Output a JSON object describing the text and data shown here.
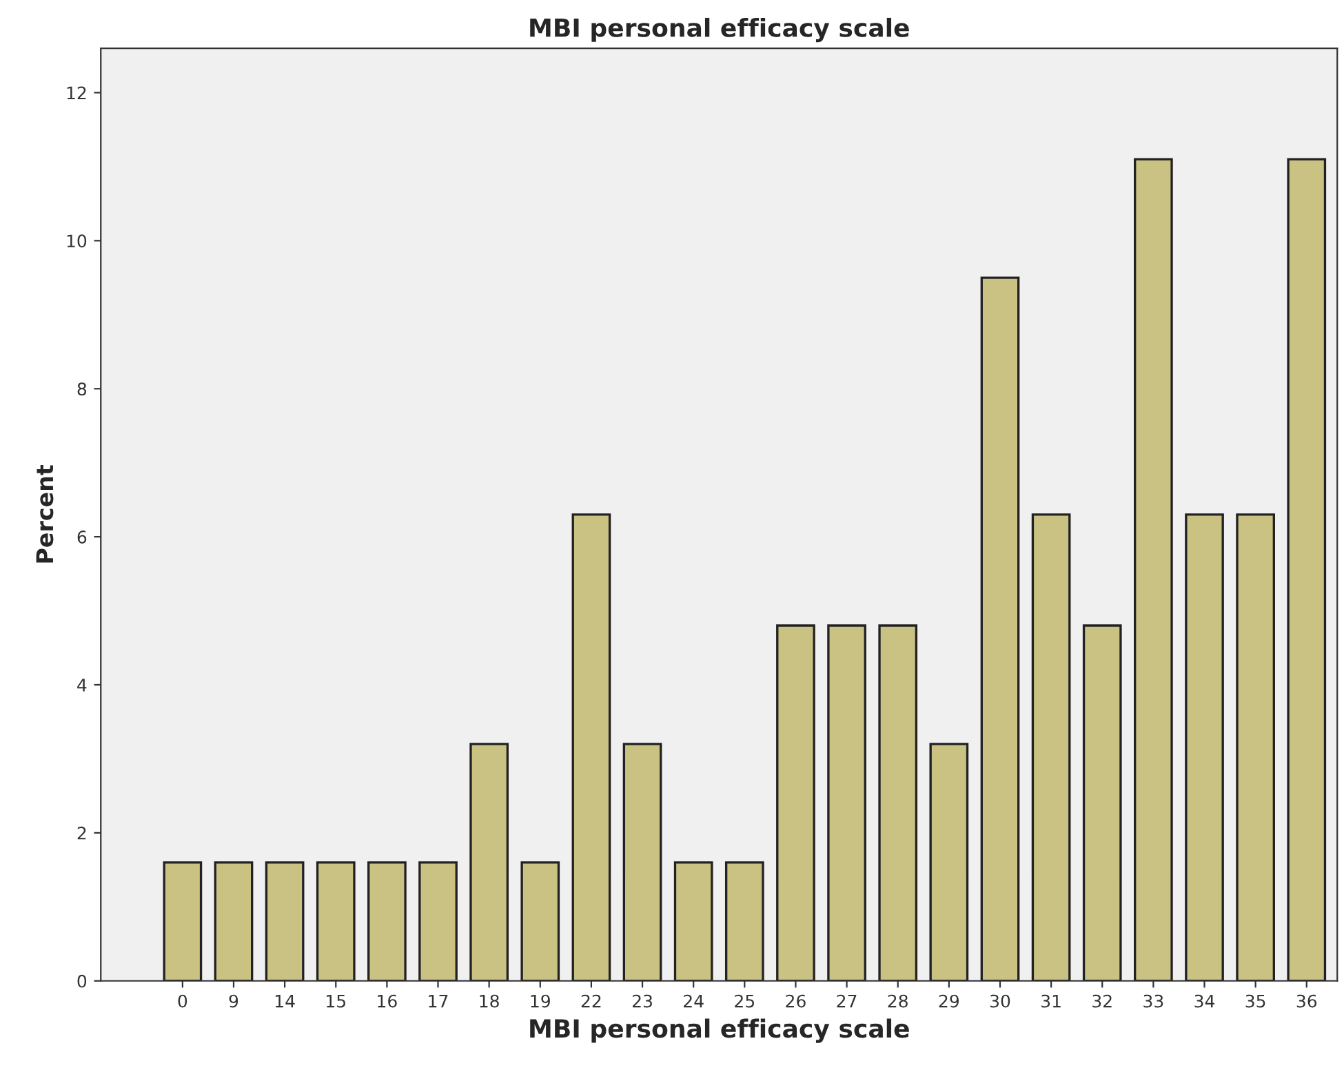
{
  "chart_data": {
    "type": "bar",
    "title": "MBI personal efficacy scale",
    "xlabel": "MBI personal efficacy scale",
    "ylabel": "Percent",
    "categories": [
      "0",
      "9",
      "14",
      "15",
      "16",
      "17",
      "18",
      "19",
      "22",
      "23",
      "24",
      "25",
      "26",
      "27",
      "28",
      "29",
      "30",
      "31",
      "32",
      "33",
      "34",
      "35",
      "36"
    ],
    "values": [
      1.6,
      1.6,
      1.6,
      1.6,
      1.6,
      1.6,
      3.2,
      1.6,
      6.3,
      3.2,
      1.6,
      1.6,
      4.8,
      4.8,
      4.8,
      3.2,
      9.5,
      6.3,
      4.8,
      11.1,
      6.3,
      6.3,
      11.1
    ],
    "color": "#c9c283",
    "ylim": [
      0,
      12.6
    ],
    "yticks": [
      0,
      2,
      4,
      6,
      8,
      10,
      12
    ],
    "grid": false,
    "legend": false
  }
}
